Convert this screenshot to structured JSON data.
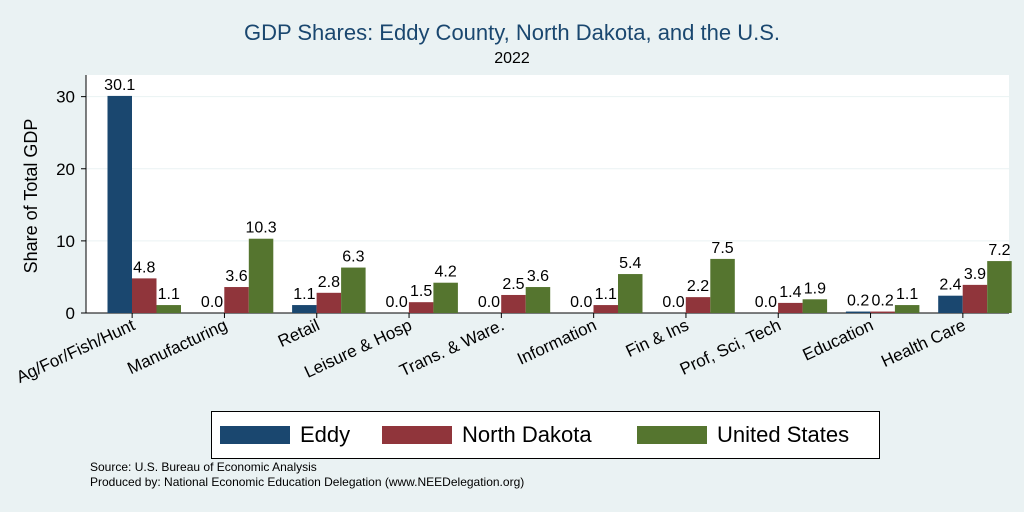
{
  "chart_data": {
    "type": "bar",
    "title": "GDP Shares: Eddy County, North Dakota, and the U.S.",
    "subtitle": "2022",
    "ylabel": "Share of Total GDP",
    "xlabel": "",
    "ylim": [
      0,
      33
    ],
    "yticks": [
      0,
      10,
      20,
      30
    ],
    "grid": true,
    "legend_position": "bottom",
    "categories": [
      "Ag/For/Fish/Hunt",
      "Manufacturing",
      "Retail",
      "Leisure & Hosp",
      "Trans. & Ware.",
      "Information",
      "Fin & Ins",
      "Prof, Sci, Tech",
      "Education",
      "Health Care"
    ],
    "series": [
      {
        "name": "Eddy",
        "color": "#1a476f",
        "values": [
          30.1,
          0.0,
          1.1,
          0.0,
          0.0,
          0.0,
          0.0,
          0.0,
          0.2,
          2.4
        ]
      },
      {
        "name": "North Dakota",
        "color": "#90353b",
        "values": [
          4.8,
          3.6,
          2.8,
          1.5,
          2.5,
          1.1,
          2.2,
          1.4,
          0.2,
          3.9
        ]
      },
      {
        "name": "United States",
        "color": "#55752f",
        "values": [
          1.1,
          10.3,
          6.3,
          4.2,
          3.6,
          5.4,
          7.5,
          1.9,
          1.1,
          7.2
        ]
      }
    ]
  },
  "notes": {
    "source": "Source: U.S. Bureau of Economic Analysis",
    "produced": "Produced by: National Economic Education Delegation (www.NEEDelegation.org)"
  }
}
